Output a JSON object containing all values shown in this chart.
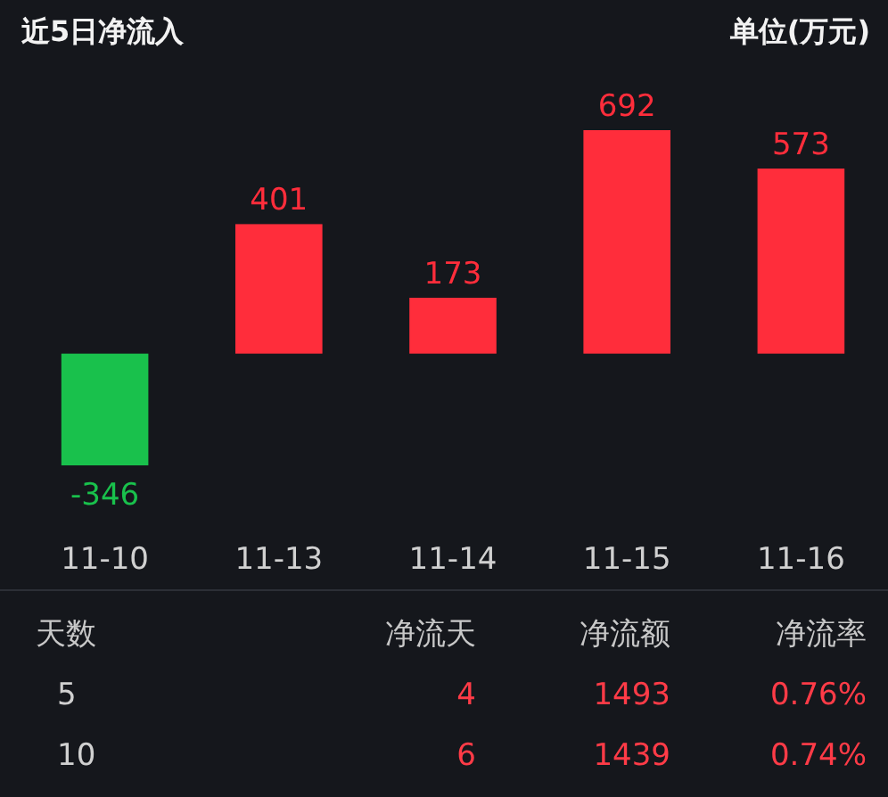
{
  "chart_data": [
    {
      "type": "bar",
      "title": "近5日净流入",
      "subtitle": "单位(万元)",
      "categories": [
        "11-10",
        "11-13",
        "11-14",
        "11-15",
        "11-16"
      ],
      "values": [
        -346,
        401,
        173,
        692,
        573
      ],
      "colors": [
        "#19c14c",
        "#ff2d3b",
        "#ff2d3b",
        "#ff2d3b",
        "#ff2d3b"
      ],
      "data_labels": true
    },
    {
      "type": "other",
      "categories": [
        "天数",
        "净流天",
        "净流额",
        "净流率"
      ],
      "cell_labels": [
        [
          "5",
          "4",
          "1493",
          "0.76%"
        ],
        [
          "10",
          "6",
          "1439",
          "0.74%"
        ]
      ],
      "colors": [
        "#d0d0d0",
        "#ff3b47",
        "#ff3b47",
        "#ff3b47"
      ]
    }
  ]
}
